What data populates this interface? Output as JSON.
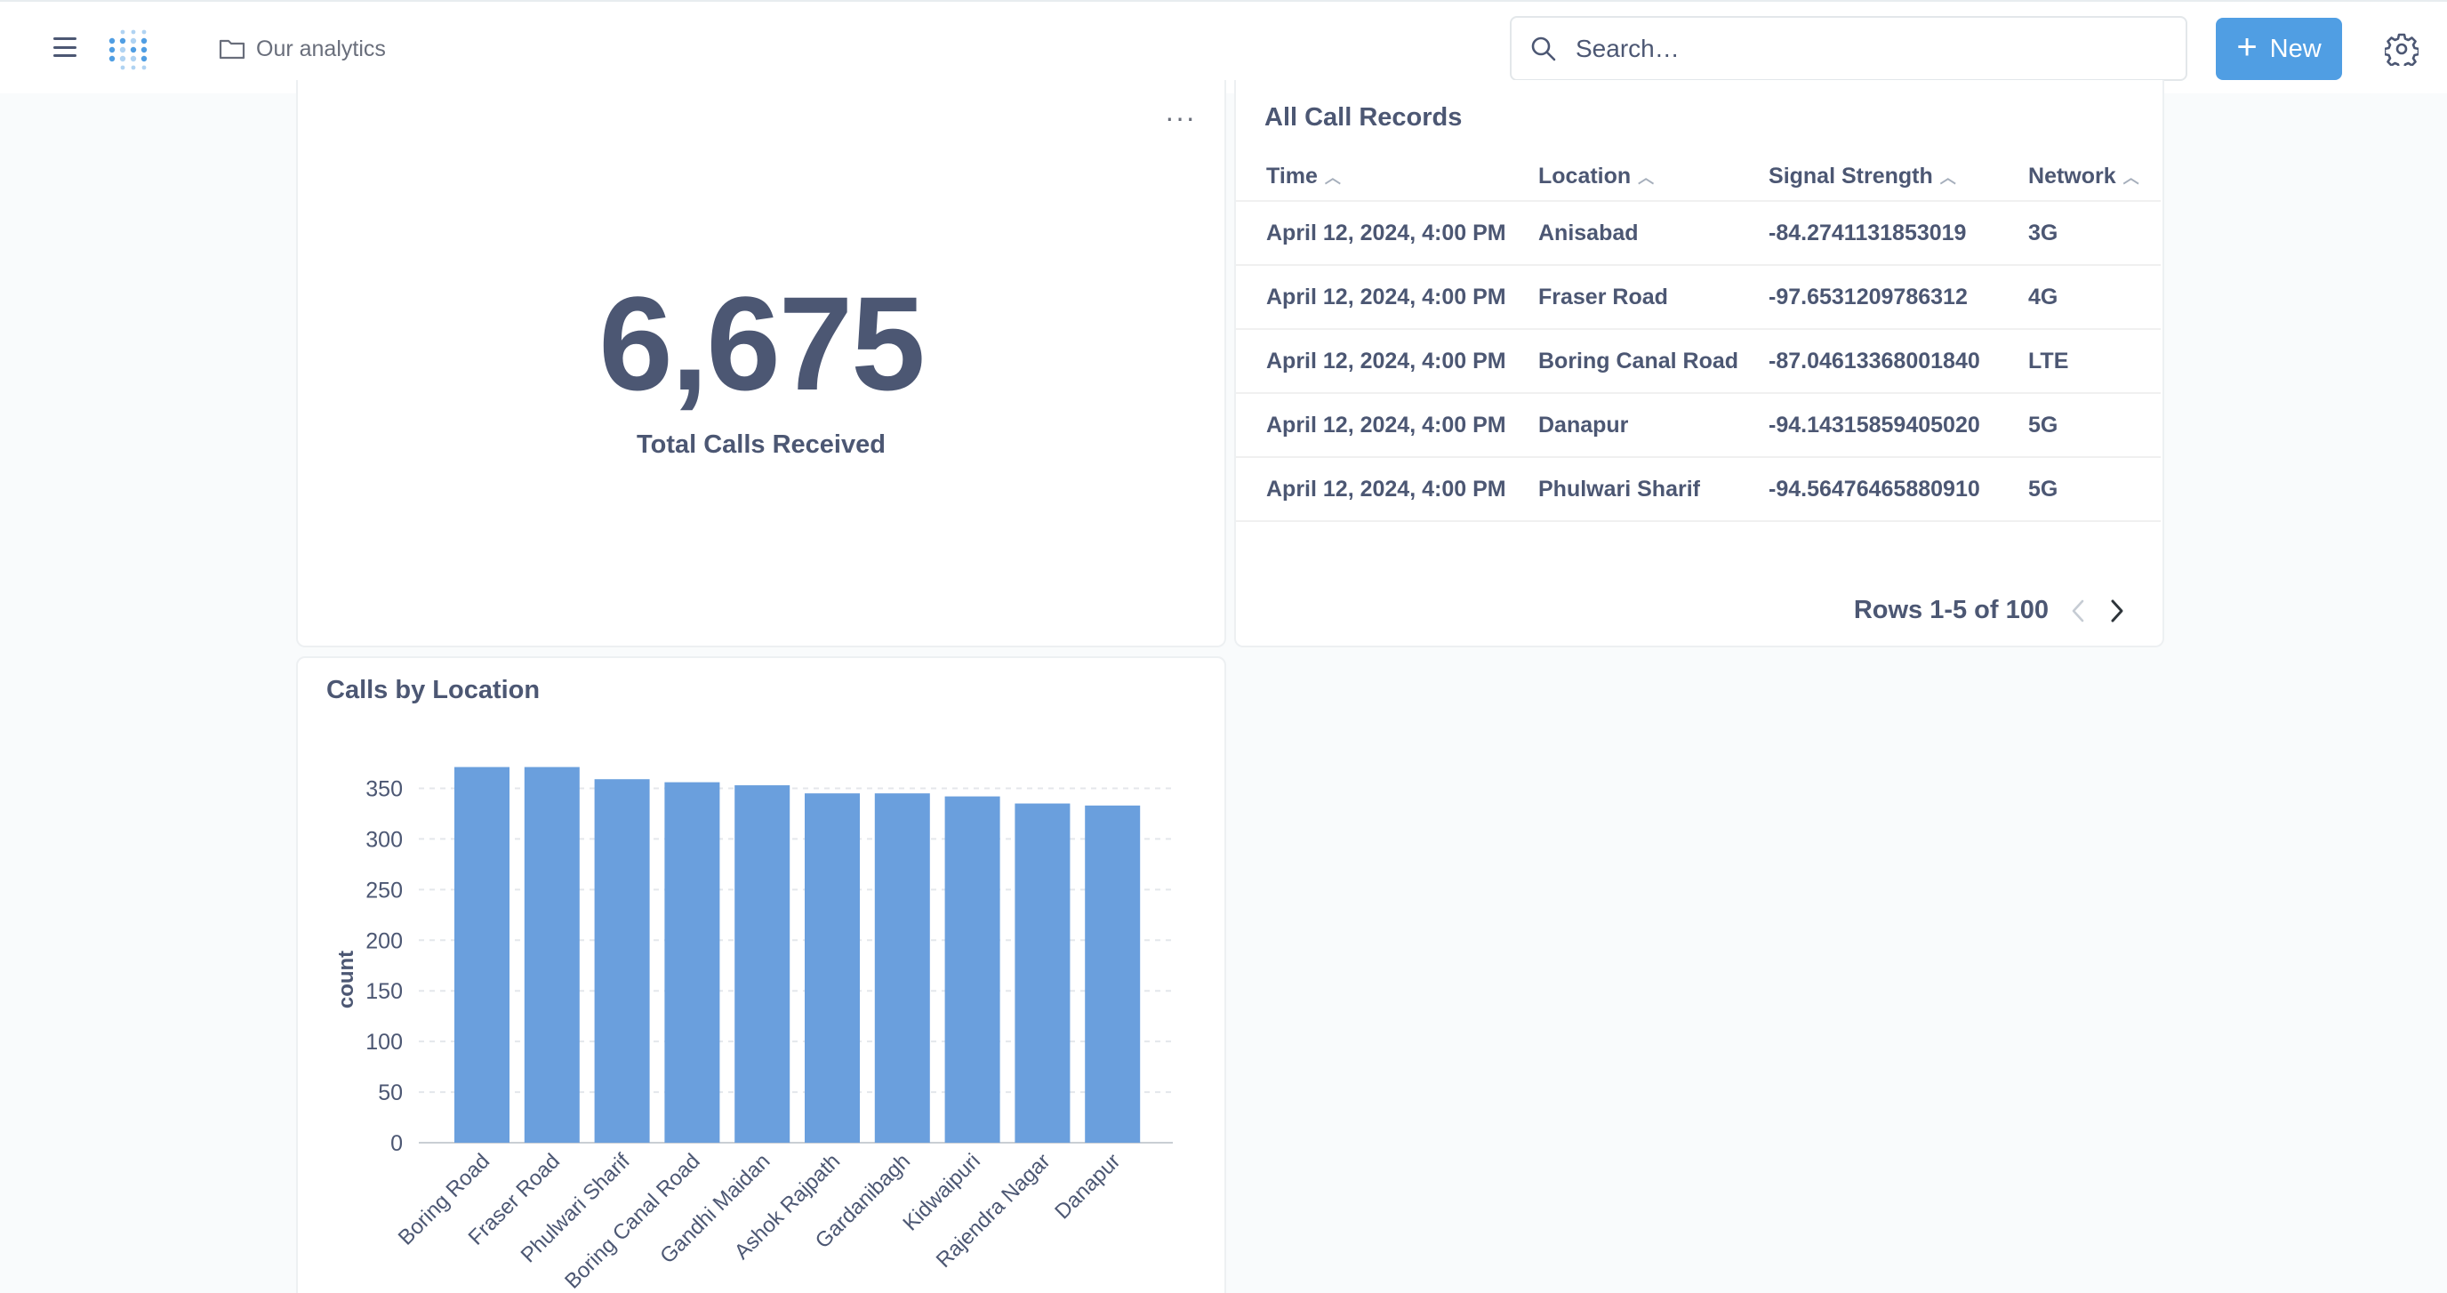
{
  "nav": {
    "collection_label": "Our analytics",
    "search_placeholder": "Search…",
    "new_label": "New"
  },
  "colors": {
    "accent": "#509ee3",
    "bar": "#6a9fdd",
    "text": "#4c5773"
  },
  "scalar_card": {
    "value": "6,675",
    "label": "Total Calls Received",
    "menu_glyph": "···"
  },
  "table_card": {
    "title": "All Call Records",
    "columns": [
      "Time",
      "Location",
      "Signal Strength",
      "Network"
    ],
    "rows": [
      [
        "April 12, 2024, 4:00 PM",
        "Anisabad",
        "-84.2741131853019",
        "3G"
      ],
      [
        "April 12, 2024, 4:00 PM",
        "Fraser Road",
        "-97.6531209786312",
        "4G"
      ],
      [
        "April 12, 2024, 4:00 PM",
        "Boring Canal Road",
        "-87.04613368001840",
        "LTE"
      ],
      [
        "April 12, 2024, 4:00 PM",
        "Danapur",
        "-94.14315859405020",
        "5G"
      ],
      [
        "April 12, 2024, 4:00 PM",
        "Phulwari Sharif",
        "-94.56476465880910",
        "5G"
      ]
    ],
    "pagination": "Rows 1-5 of 100"
  },
  "chart_card": {
    "title": "Calls by Location"
  },
  "chart_data": {
    "type": "bar",
    "title": "Calls by Location",
    "xlabel": "",
    "ylabel": "count",
    "categories": [
      "Boring Road",
      "Fraser Road",
      "Phulwari Sharif",
      "Boring Canal Road",
      "Gandhi Maidan",
      "Ashok Rajpath",
      "Gardanibagh",
      "Kidwaipuri",
      "Rajendra Nagar",
      "Danapur"
    ],
    "values": [
      371,
      371,
      359,
      356,
      353,
      345,
      345,
      342,
      335,
      333
    ],
    "ylim": [
      0,
      375
    ],
    "yticks": [
      0,
      50,
      100,
      150,
      200,
      250,
      300,
      350
    ],
    "grid": true
  }
}
